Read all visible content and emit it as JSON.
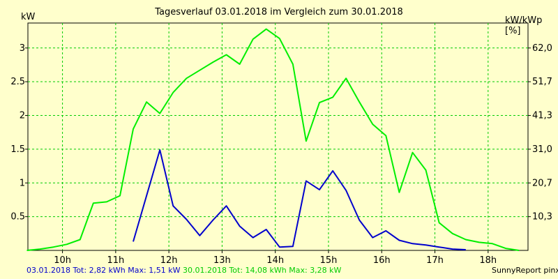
{
  "chart_data": {
    "type": "line",
    "title": "Tagesverlauf 03.01.2018 im Vergleich zum 30.01.2018",
    "ylabel": "kW",
    "y2label": "kW/kWp [%]",
    "xlim": [
      9.35,
      18.75
    ],
    "ylim": [
      0,
      3.37
    ],
    "x_ticks": [
      10,
      11,
      12,
      13,
      14,
      15,
      16,
      17,
      18
    ],
    "x_tick_labels": [
      "10h",
      "11h",
      "12h",
      "13h",
      "14h",
      "15h",
      "16h",
      "17h",
      "18h"
    ],
    "y_ticks": [
      0.5,
      1,
      1.5,
      2,
      2.5,
      3
    ],
    "y_tick_labels": [
      "0.5",
      "1",
      "1.5",
      "2",
      "2.5",
      "3"
    ],
    "y2_tick_labels": [
      "10,3",
      "20,7",
      "31,0",
      "41,3",
      "51,7",
      "62,0"
    ],
    "grid": true,
    "series": [
      {
        "name": "03.01.2018",
        "color": "#0000cc",
        "x": [
          11.33,
          11.83,
          12.08,
          12.33,
          12.58,
          12.83,
          13.08,
          13.33,
          13.58,
          13.83,
          14.08,
          14.33,
          14.58,
          14.83,
          15.08,
          15.33,
          15.58,
          15.83,
          16.08,
          16.33,
          16.58,
          16.83,
          17.08,
          17.33,
          17.58
        ],
        "values": [
          0.13,
          1.49,
          0.66,
          0.46,
          0.22,
          0.45,
          0.66,
          0.36,
          0.19,
          0.31,
          0.05,
          0.06,
          1.03,
          0.9,
          1.18,
          0.89,
          0.45,
          0.19,
          0.29,
          0.15,
          0.1,
          0.08,
          0.05,
          0.02,
          0.01
        ]
      },
      {
        "name": "30.01.2018",
        "color": "#00ee00",
        "x": [
          9.33,
          9.58,
          9.83,
          10.08,
          10.33,
          10.58,
          10.83,
          11.08,
          11.33,
          11.58,
          11.83,
          12.08,
          12.33,
          12.58,
          12.83,
          13.08,
          13.33,
          13.58,
          13.83,
          14.08,
          14.33,
          14.58,
          14.83,
          15.08,
          15.33,
          15.58,
          15.83,
          16.08,
          16.33,
          16.58,
          16.83,
          17.08,
          17.33,
          17.58,
          17.83,
          18.08,
          18.33,
          18.58
        ],
        "values": [
          0.0,
          0.02,
          0.05,
          0.09,
          0.16,
          0.7,
          0.72,
          0.81,
          1.8,
          2.2,
          2.03,
          2.34,
          2.55,
          2.67,
          2.79,
          2.9,
          2.76,
          3.13,
          3.28,
          3.14,
          2.76,
          1.62,
          2.19,
          2.27,
          2.55,
          2.2,
          1.87,
          1.7,
          0.86,
          1.45,
          1.19,
          0.41,
          0.25,
          0.16,
          0.12,
          0.1,
          0.03,
          0.0
        ]
      }
    ]
  },
  "footer": {
    "series1": "03.01.2018 Tot: 2,82 kWh Max: 1,51 kW",
    "series2": "30.01.2018 Tot: 14,08 kWh Max: 3,28 kW",
    "credit": "SunnyReport pinxit"
  }
}
